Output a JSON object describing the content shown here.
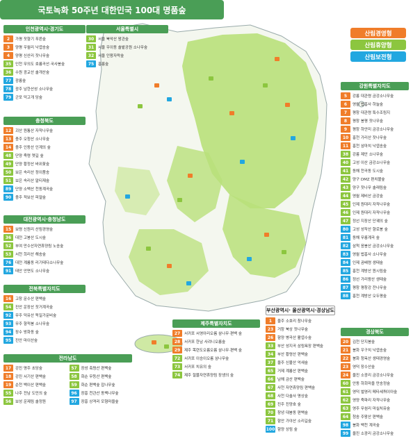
{
  "title": "국토녹화 50주년 대한민국 100대 명품숲",
  "legend": [
    {
      "label": "산림경영형",
      "color": "#f07d2a"
    },
    {
      "label": "산림휴양형",
      "color": "#8cc63f"
    },
    {
      "label": "산림보전형",
      "color": "#22a7e0"
    }
  ],
  "panels": [
    {
      "id": "incheon",
      "title": "인천광역시·경기도",
      "items": [
        {
          "n": "2",
          "c": "orange",
          "t": "가평 잣향기 푸른숲"
        },
        {
          "n": "3",
          "c": "orange",
          "t": "양평 우월리 낙엽송숲"
        },
        {
          "n": "4",
          "c": "orange",
          "t": "양평 신산리 잣나무숲"
        },
        {
          "n": "35",
          "c": "green",
          "t": "인천 무의도 호룡곡산·국사봉숲"
        },
        {
          "n": "36",
          "c": "green",
          "t": "수원 광교산 솔개산숲"
        },
        {
          "n": "77",
          "c": "blue",
          "t": "광릉숲"
        },
        {
          "n": "78",
          "c": "blue",
          "t": "광주 남한산성 소나무숲"
        },
        {
          "n": "79",
          "c": "blue",
          "t": "군포 덕고개 당숲"
        }
      ]
    },
    {
      "id": "seoul",
      "title": "서울특별시",
      "items": [
        {
          "n": "30",
          "c": "green",
          "t": "서울 북악산 왕관숲"
        },
        {
          "n": "31",
          "c": "green",
          "t": "서울 우이동 솔밭공원 소나무숲"
        },
        {
          "n": "32",
          "c": "green",
          "t": "서울 인왕자락숲"
        },
        {
          "n": "75",
          "c": "blue",
          "t": "홍릉숲"
        }
      ]
    },
    {
      "id": "chungbuk",
      "title": "충청북도",
      "items": [
        {
          "n": "12",
          "c": "orange",
          "t": "괴산 원통산 자작나무숲"
        },
        {
          "n": "13",
          "c": "orange",
          "t": "충주 오청산 소나무숲"
        },
        {
          "n": "14",
          "c": "orange",
          "t": "충주 인동산 인계의 숲"
        },
        {
          "n": "48",
          "c": "green",
          "t": "단양 죽령 옛길 숲"
        },
        {
          "n": "49",
          "c": "green",
          "t": "단양 황정산 바위꽃숲"
        },
        {
          "n": "50",
          "c": "green",
          "t": "보은 속리산 정이품송"
        },
        {
          "n": "51",
          "c": "green",
          "t": "보은 속리산 말티재숲"
        },
        {
          "n": "89",
          "c": "blue",
          "t": "단양 소백산 천동계곡숲"
        },
        {
          "n": "90",
          "c": "blue",
          "t": "충주 적보산 피얼숲"
        }
      ]
    },
    {
      "id": "daejeon",
      "title": "대전광역시·충청남도",
      "items": [
        {
          "n": "15",
          "c": "orange",
          "t": "보령 신원리 산림경영숲"
        },
        {
          "n": "36",
          "c": "green",
          "t": "대전 고봉산 도시숲"
        },
        {
          "n": "52",
          "c": "green",
          "t": "부여 만수산자연휴양림 노송숲"
        },
        {
          "n": "53",
          "c": "green",
          "t": "서천 희리산 해송숲"
        },
        {
          "n": "76",
          "c": "blue",
          "t": "대전 계룡동 리기테다소나무숲"
        },
        {
          "n": "91",
          "c": "blue",
          "t": "태안 안면도 소나무숲"
        }
      ]
    },
    {
      "id": "jeonbuk",
      "title": "전북특별자치도",
      "items": [
        {
          "n": "16",
          "c": "orange",
          "t": "고창 문수산 편백숲"
        },
        {
          "n": "54",
          "c": "green",
          "t": "진안 운장산 잣거계곡숲"
        },
        {
          "n": "92",
          "c": "blue",
          "t": "무주 덕유산 독일가문비숲"
        },
        {
          "n": "93",
          "c": "blue",
          "t": "무주 향적봉 소나무숲"
        },
        {
          "n": "94",
          "c": "blue",
          "t": "장수 방화동 숲"
        },
        {
          "n": "95",
          "c": "blue",
          "t": "진안 마이산숲"
        }
      ]
    },
    {
      "id": "jeonnam",
      "title": "전라남도",
      "items": [
        {
          "n": "17",
          "c": "orange",
          "t": "강진 명주 초당숲"
        },
        {
          "n": "18",
          "c": "orange",
          "t": "강진 서기산 편백숲"
        },
        {
          "n": "19",
          "c": "orange",
          "t": "순천 백이산 편백숲"
        },
        {
          "n": "55",
          "c": "green",
          "t": "나주 전남 도민의 숲"
        },
        {
          "n": "56",
          "c": "green",
          "t": "보성 운제림 솔정원"
        },
        {
          "n": "57",
          "c": "green",
          "t": "장성 축령산 편백숲"
        },
        {
          "n": "58",
          "c": "green",
          "t": "화순 무등산 편백숲"
        },
        {
          "n": "59",
          "c": "green",
          "t": "화순 편백숲 잡나무숲"
        },
        {
          "n": "96",
          "c": "blue",
          "t": "장흥 천관산 동백나무숲"
        },
        {
          "n": "97",
          "c": "blue",
          "t": "장흥 상격리 모형마을숲"
        }
      ]
    },
    {
      "id": "jeju",
      "title": "제주특별자치도",
      "items": [
        {
          "n": "27",
          "c": "orange",
          "t": "서귀포 서영아리오름 삼나무·편백 숲"
        },
        {
          "n": "28",
          "c": "orange",
          "t": "서귀포 한남 사려니오름숲"
        },
        {
          "n": "29",
          "c": "orange",
          "t": "제주 목련도오름오름 삼나무·편백 숲"
        },
        {
          "n": "72",
          "c": "green",
          "t": "서귀포 이승이오름 삼나무숲"
        },
        {
          "n": "73",
          "c": "green",
          "t": "서귀포 치유의 숲"
        },
        {
          "n": "74",
          "c": "green",
          "t": "제주 절물자연휴양림 장생의 숲"
        }
      ]
    },
    {
      "id": "busan",
      "title": "부산광역시· 울산광역시·경상남도",
      "items": [
        {
          "n": "1",
          "c": "orange",
          "t": "울주 소호리 참나무숲"
        },
        {
          "n": "23",
          "c": "orange",
          "t": "거창 북상 잣나무숲"
        },
        {
          "n": "26",
          "c": "orange",
          "t": "함양 병곡산 활엽수숲"
        },
        {
          "n": "33",
          "c": "green",
          "t": "부산 성지곡 삼림욕장 편백숲"
        },
        {
          "n": "34",
          "c": "green",
          "t": "부산 황령산 편백숲"
        },
        {
          "n": "37",
          "c": "green",
          "t": "울주 신불산 억새숲"
        },
        {
          "n": "65",
          "c": "green",
          "t": "거제 계룡산 편백숲"
        },
        {
          "n": "66",
          "c": "green",
          "t": "남해 금산 편백숲"
        },
        {
          "n": "67",
          "c": "green",
          "t": "사천 자연휴양림 편백숲"
        },
        {
          "n": "68",
          "c": "green",
          "t": "사천 다솔사 명상숲"
        },
        {
          "n": "69",
          "c": "green",
          "t": "진주 진양호 숲"
        },
        {
          "n": "70",
          "c": "green",
          "t": "창녕 대봉동 편백숲"
        },
        {
          "n": "71",
          "c": "green",
          "t": "함안 가야산 소리길숲"
        },
        {
          "n": "100",
          "c": "blue",
          "t": "함양 상림 숲"
        }
      ]
    },
    {
      "id": "gangwon",
      "title": "강원특별자치도",
      "items": [
        {
          "n": "5",
          "c": "orange",
          "t": "강릉 대관령 금강소나무숲"
        },
        {
          "n": "6",
          "c": "orange",
          "t": "영월 법흥사 하늘숲"
        },
        {
          "n": "7",
          "c": "orange",
          "t": "평창 대관령 특수조림지"
        },
        {
          "n": "8",
          "c": "orange",
          "t": "평창 봉평 잣나무숲"
        },
        {
          "n": "9",
          "c": "orange",
          "t": "평창 하안미 금강소나무숲"
        },
        {
          "n": "10",
          "c": "orange",
          "t": "홍천 가리산 잣나무숲"
        },
        {
          "n": "11",
          "c": "orange",
          "t": "홍천 삼마치 낙엽송숲"
        },
        {
          "n": "38",
          "c": "green",
          "t": "강릉 제안 소나무숲"
        },
        {
          "n": "40",
          "c": "green",
          "t": "고성 이산 금강소나무숲"
        },
        {
          "n": "41",
          "c": "green",
          "t": "동해 천곡동 도시숲"
        },
        {
          "n": "42",
          "c": "green",
          "t": "양구 DMZ 편치볼숲"
        },
        {
          "n": "43",
          "c": "green",
          "t": "양구 잣나무 솔래림숲"
        },
        {
          "n": "44",
          "c": "green",
          "t": "영월 제비산 금강숲"
        },
        {
          "n": "45",
          "c": "green",
          "t": "인제 원대리 자작나무숲"
        },
        {
          "n": "46",
          "c": "green",
          "t": "인제 원대리 자작나무숲"
        },
        {
          "n": "47",
          "c": "green",
          "t": "정선 지장산 단궤의 숲"
        },
        {
          "n": "80",
          "c": "blue",
          "t": "고성 성작산 향로봉 숲"
        },
        {
          "n": "81",
          "c": "blue",
          "t": "동해 무릉계곡 숲"
        },
        {
          "n": "82",
          "c": "blue",
          "t": "삼척 응봉산 금강소나무숲"
        },
        {
          "n": "83",
          "c": "blue",
          "t": "영월 법흥사 소나무숲"
        },
        {
          "n": "84",
          "c": "blue",
          "t": "인제 곰배령 생태숲"
        },
        {
          "n": "85",
          "c": "blue",
          "t": "홍천 계방산 원시림숲"
        },
        {
          "n": "86",
          "c": "blue",
          "t": "정선 가리왕산 생태숲"
        },
        {
          "n": "87",
          "c": "blue",
          "t": "평창 평창강 잔나무숲"
        },
        {
          "n": "88",
          "c": "blue",
          "t": "홍천 계방산 오두평숲"
        }
      ]
    },
    {
      "id": "gyeongbuk",
      "title": "경상북도",
      "items": [
        {
          "n": "20",
          "c": "orange",
          "t": "김천 단지봉숲"
        },
        {
          "n": "21",
          "c": "orange",
          "t": "봉화 우구치 낙엽송숲"
        },
        {
          "n": "22",
          "c": "orange",
          "t": "봉화 청옥산 생태경영숲"
        },
        {
          "n": "23",
          "c": "orange",
          "t": "영덕 장수산숲"
        },
        {
          "n": "24",
          "c": "orange",
          "t": "울진 소광리 금강소나무숲"
        },
        {
          "n": "60",
          "c": "green",
          "t": "안동 하회마을 만송정숲"
        },
        {
          "n": "61",
          "c": "green",
          "t": "영덕 벌영리 메타세쿼이아숲"
        },
        {
          "n": "62",
          "c": "green",
          "t": "영양 죽파리 자작나무숲"
        },
        {
          "n": "63",
          "c": "green",
          "t": "영주 무섬리 마실치유숲"
        },
        {
          "n": "64",
          "c": "green",
          "t": "청송 주왕산 편백숲"
        },
        {
          "n": "98",
          "c": "blue",
          "t": "봉화 백천 계곡숲"
        },
        {
          "n": "99",
          "c": "blue",
          "t": "울진 소광리 금강소나무숲"
        }
      ]
    }
  ]
}
